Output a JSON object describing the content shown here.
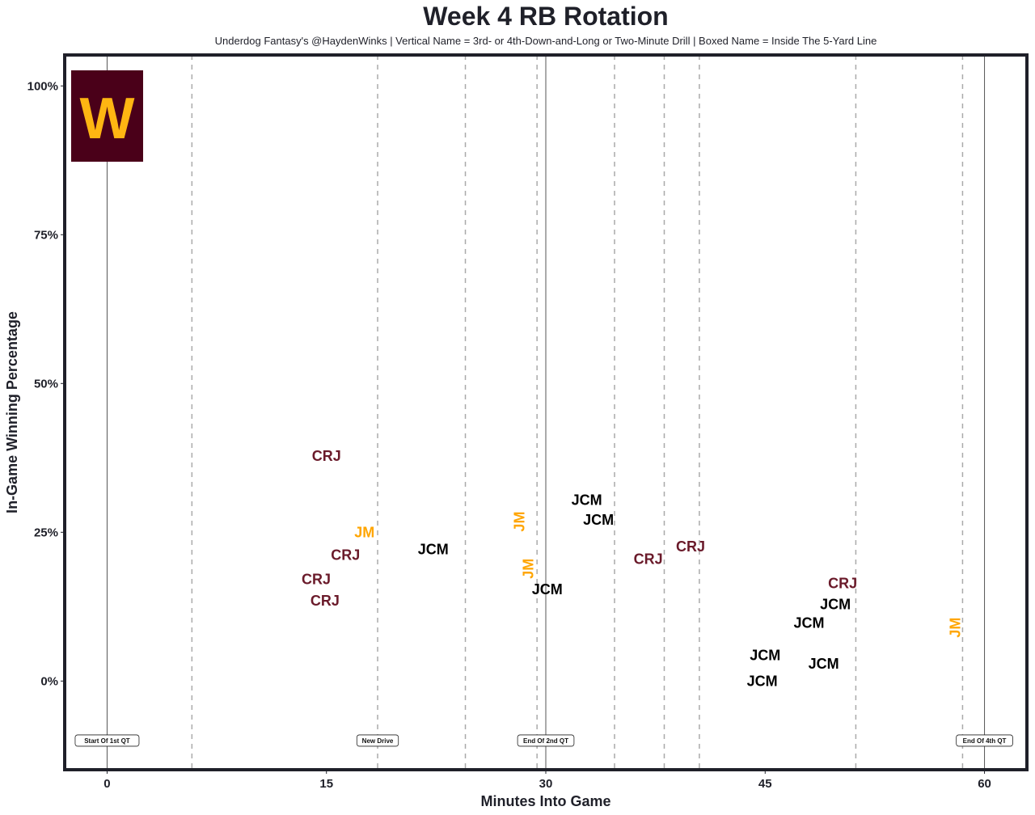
{
  "chart_data": {
    "type": "scatter",
    "title": "Week 4 RB Rotation",
    "subtitle": "Underdog Fantasy's @HaydenWinks | Vertical Name = 3rd- or 4th-Down-and-Long or Two-Minute Drill | Boxed Name = Inside The 5-Yard Line",
    "xlabel": "Minutes Into Game",
    "ylabel": "In-Game Winning Percentage",
    "xlim": [
      -2.9,
      62.9
    ],
    "ylim": [
      -14.9,
      105.2
    ],
    "xticks": [
      0,
      15,
      30,
      45,
      60
    ],
    "xtick_labels": [
      "0",
      "15",
      "30",
      "45",
      "60"
    ],
    "yticks": [
      0,
      25,
      50,
      75,
      100
    ],
    "ytick_labels": [
      "0%",
      "25%",
      "50%",
      "75%",
      "100%"
    ],
    "grid": false,
    "colors": {
      "CRJ": "#6a1a2a",
      "JM": "#ffa500",
      "JCM": "#000000",
      "logo_bg": "#4a0019",
      "logo_fg": "#ffb612",
      "frame": "#1f2029"
    },
    "logo_text": "W",
    "quarter_lines": [
      0,
      30,
      60
    ],
    "drive_lines": [
      5.8,
      18.5,
      24.5,
      29.4,
      34.7,
      38.1,
      40.5,
      51.2,
      58.5
    ],
    "annotations": [
      {
        "x": 0,
        "y": -10,
        "text": "Start Of 1st QT"
      },
      {
        "x": 18.5,
        "y": -10,
        "text": "New Drive"
      },
      {
        "x": 30,
        "y": -10,
        "text": "End Of 2nd QT"
      },
      {
        "x": 60,
        "y": -10,
        "text": "End Of 4th QT"
      }
    ],
    "points": [
      {
        "x": 15.0,
        "y": 37.8,
        "label": "CRJ",
        "vertical": false
      },
      {
        "x": 17.6,
        "y": 25.0,
        "label": "JM",
        "vertical": false
      },
      {
        "x": 16.3,
        "y": 21.2,
        "label": "CRJ",
        "vertical": false
      },
      {
        "x": 22.3,
        "y": 22.1,
        "label": "JCM",
        "vertical": false
      },
      {
        "x": 14.3,
        "y": 17.1,
        "label": "CRJ",
        "vertical": false
      },
      {
        "x": 14.9,
        "y": 14.3,
        "label": "CRJ",
        "vertical": false
      },
      {
        "x": 28.2,
        "y": 26.8,
        "label": "JM",
        "vertical": true
      },
      {
        "x": 28.8,
        "y": 18.9,
        "label": "JM",
        "vertical": true
      },
      {
        "x": 30.1,
        "y": 17.0,
        "label": "JCM",
        "vertical": false
      },
      {
        "x": 32.8,
        "y": 30.4,
        "label": "JCM",
        "vertical": false
      },
      {
        "x": 33.6,
        "y": 27.9,
        "label": "JCM",
        "vertical": false
      },
      {
        "x": 37.0,
        "y": 20.5,
        "label": "CRJ",
        "vertical": false
      },
      {
        "x": 39.9,
        "y": 22.6,
        "label": "CRJ",
        "vertical": false
      },
      {
        "x": 49.8,
        "y": 12.9,
        "label": "JCM",
        "vertical": false
      },
      {
        "x": 50.3,
        "y": 14.0,
        "label": "CRJ",
        "vertical": false
      },
      {
        "x": 48.0,
        "y": 11.4,
        "label": "JCM",
        "vertical": false
      },
      {
        "x": 58.0,
        "y": 9.0,
        "label": "JM",
        "vertical": true
      },
      {
        "x": 45.0,
        "y": 4.3,
        "label": "JCM",
        "vertical": false
      },
      {
        "x": 49.0,
        "y": 2.9,
        "label": "JCM",
        "vertical": false
      },
      {
        "x": 44.8,
        "y": 0.0,
        "label": "JCM",
        "vertical": false
      }
    ]
  }
}
